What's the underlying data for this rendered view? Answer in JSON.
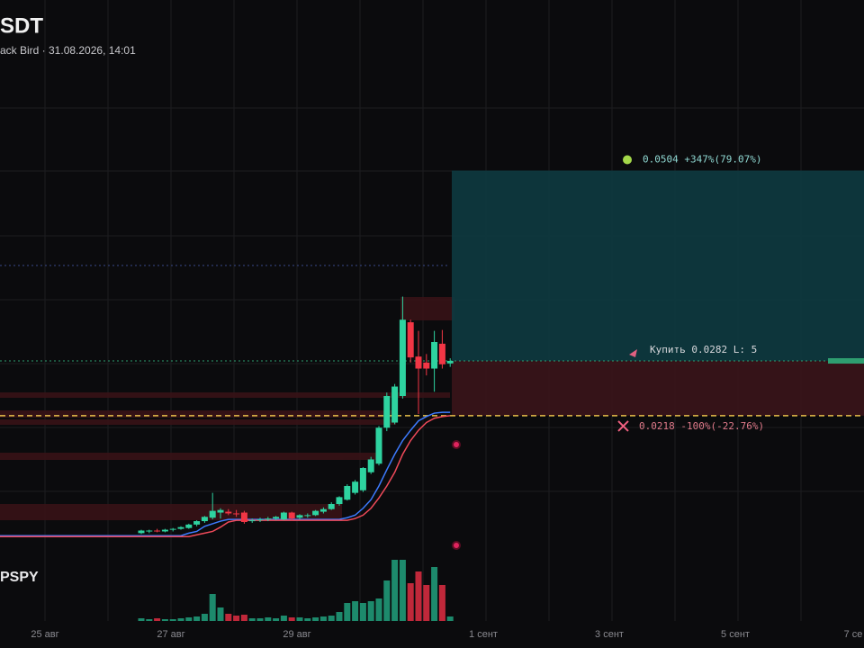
{
  "header": {
    "symbol": "SDT",
    "subtitle": "ack Bird · 31.08.2026, 14:01"
  },
  "indicator": {
    "name": "PSPY"
  },
  "x_axis": {
    "labels": [
      "25 авг",
      "27 авг",
      "29 авг",
      "1 сент",
      "3 сент",
      "5 сент",
      "7 се"
    ]
  },
  "price_range": [
    0.0073,
    0.0703
  ],
  "position": {
    "take_profit": {
      "value": 0.0504,
      "label": "0.0504 +347%(79.07%)"
    },
    "entry": {
      "value": 0.0282,
      "label": "Купить 0.0282 L: 5"
    },
    "stop_loss": {
      "value": 0.0218,
      "label": "0.0218 -100%(-22.76%)"
    }
  },
  "candles": [
    [
      0.0081,
      0.0085,
      0.008,
      0.0084
    ],
    [
      0.0083,
      0.0085,
      0.0081,
      0.0084
    ],
    [
      0.0084,
      0.0086,
      0.0082,
      0.0083
    ],
    [
      0.0083,
      0.0086,
      0.0082,
      0.0085
    ],
    [
      0.0085,
      0.0087,
      0.0083,
      0.0086
    ],
    [
      0.0086,
      0.0089,
      0.0085,
      0.0088
    ],
    [
      0.0087,
      0.0092,
      0.0086,
      0.0091
    ],
    [
      0.0091,
      0.0096,
      0.0089,
      0.0095
    ],
    [
      0.0095,
      0.0101,
      0.0093,
      0.01
    ],
    [
      0.0099,
      0.0128,
      0.0097,
      0.0107
    ],
    [
      0.0105,
      0.011,
      0.0098,
      0.0108
    ],
    [
      0.0106,
      0.0109,
      0.0102,
      0.0104
    ],
    [
      0.0104,
      0.0108,
      0.01,
      0.0103
    ],
    [
      0.0105,
      0.0107,
      0.0092,
      0.0094
    ],
    [
      0.0095,
      0.0098,
      0.0093,
      0.0096
    ],
    [
      0.0096,
      0.0099,
      0.0094,
      0.0097
    ],
    [
      0.0097,
      0.01,
      0.0095,
      0.0098
    ],
    [
      0.0098,
      0.0101,
      0.0096,
      0.01
    ],
    [
      0.0097,
      0.0106,
      0.0096,
      0.0105
    ],
    [
      0.0105,
      0.0106,
      0.0096,
      0.0098
    ],
    [
      0.0099,
      0.0103,
      0.0097,
      0.0102
    ],
    [
      0.0101,
      0.0104,
      0.0099,
      0.0102
    ],
    [
      0.0102,
      0.0108,
      0.0101,
      0.0107
    ],
    [
      0.0106,
      0.0111,
      0.0104,
      0.0109
    ],
    [
      0.0109,
      0.0117,
      0.0108,
      0.0115
    ],
    [
      0.0115,
      0.0124,
      0.0113,
      0.0123
    ],
    [
      0.012,
      0.0138,
      0.0119,
      0.0136
    ],
    [
      0.0128,
      0.0143,
      0.0126,
      0.0141
    ],
    [
      0.0131,
      0.0158,
      0.0129,
      0.0157
    ],
    [
      0.0152,
      0.017,
      0.015,
      0.0167
    ],
    [
      0.0162,
      0.0206,
      0.016,
      0.0204
    ],
    [
      0.0204,
      0.0245,
      0.02,
      0.0241
    ],
    [
      0.021,
      0.0255,
      0.0208,
      0.0252
    ],
    [
      0.0241,
      0.0357,
      0.0238,
      0.033
    ],
    [
      0.0327,
      0.033,
      0.028,
      0.0286
    ],
    [
      0.0287,
      0.0317,
      0.022,
      0.0273
    ],
    [
      0.028,
      0.029,
      0.0265,
      0.0273
    ],
    [
      0.0273,
      0.0317,
      0.0246,
      0.0304
    ],
    [
      0.0302,
      0.0318,
      0.0273,
      0.0278
    ],
    [
      0.0279,
      0.0285,
      0.0275,
      0.0282
    ]
  ],
  "volumes": [
    3,
    2,
    3,
    2,
    2,
    3,
    4,
    5,
    8,
    30,
    15,
    8,
    6,
    7,
    3,
    3,
    4,
    3,
    6,
    4,
    4,
    3,
    4,
    5,
    6,
    10,
    20,
    22,
    20,
    22,
    25,
    45,
    68,
    68,
    42,
    55,
    40,
    60,
    40,
    5
  ],
  "blue_line": [
    0.0078,
    0.0078,
    0.0078,
    0.0078,
    0.0078,
    0.0078,
    0.0081,
    0.0083,
    0.0089,
    0.0092,
    0.0095,
    0.0097,
    0.0097,
    0.0097,
    0.0097,
    0.0097,
    0.0097,
    0.0097,
    0.0097,
    0.0097,
    0.0097,
    0.0097,
    0.0097,
    0.0097,
    0.0097,
    0.0097,
    0.0099,
    0.0102,
    0.011,
    0.012,
    0.0136,
    0.0155,
    0.0173,
    0.0189,
    0.0201,
    0.0212,
    0.0217,
    0.0221,
    0.0222,
    0.0222
  ],
  "red_line": [
    0.0077,
    0.0077,
    0.0077,
    0.0077,
    0.0077,
    0.0077,
    0.0077,
    0.0079,
    0.0081,
    0.0083,
    0.0088,
    0.0094,
    0.0096,
    0.0096,
    0.0096,
    0.0096,
    0.0096,
    0.0096,
    0.0096,
    0.0096,
    0.0096,
    0.0096,
    0.0096,
    0.0096,
    0.0096,
    0.0096,
    0.0096,
    0.0098,
    0.0102,
    0.011,
    0.0122,
    0.0136,
    0.0152,
    0.0173,
    0.0189,
    0.0201,
    0.021,
    0.0215,
    0.0217,
    0.0218
  ]
}
